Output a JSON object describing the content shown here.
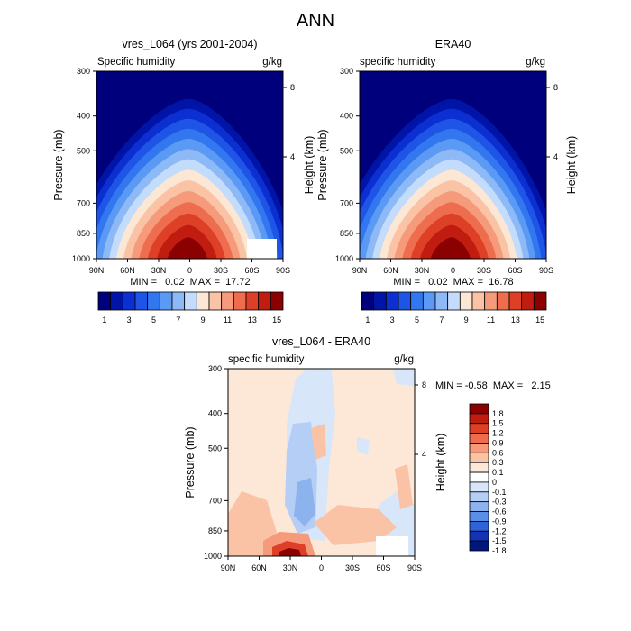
{
  "title": "ANN",
  "chart_data": [
    {
      "type": "heatmap",
      "title": "vres_L064 (yrs 2001-2004)",
      "subtitle_left": "Specific humidity",
      "units": "g/kg",
      "xlabel": "",
      "ylabel": "Pressure (mb)",
      "y2label": "Height (km)",
      "x_ticks": [
        "90N",
        "60N",
        "30N",
        "0",
        "30S",
        "60S",
        "90S"
      ],
      "y_ticks": [
        "300",
        "400",
        "500",
        "700",
        "850",
        "1000"
      ],
      "y2_ticks": [
        "8",
        "4"
      ],
      "min_max": "MIN =   0.02  MAX =  17.72",
      "value_range": [
        0.02,
        17.72
      ],
      "peak": {
        "lat": 0,
        "pressure": 1000,
        "value": 17.72
      },
      "colorbar": {
        "levels": [
          "1",
          "3",
          "5",
          "7",
          "9",
          "11",
          "13",
          "15"
        ]
      }
    },
    {
      "type": "heatmap",
      "title": "ERA40",
      "subtitle_left": "specific humidity",
      "units": "g/kg",
      "xlabel": "",
      "ylabel": "Pressure (mb)",
      "y2label": "Height (km)",
      "x_ticks": [
        "90N",
        "60N",
        "30N",
        "0",
        "30S",
        "60S",
        "90S"
      ],
      "y_ticks": [
        "300",
        "400",
        "500",
        "700",
        "850",
        "1000"
      ],
      "y2_ticks": [
        "8",
        "4"
      ],
      "min_max": "MIN =   0.02  MAX =  16.78",
      "value_range": [
        0.02,
        16.78
      ],
      "peak": {
        "lat": 0,
        "pressure": 1000,
        "value": 16.78
      },
      "colorbar": {
        "levels": [
          "1",
          "3",
          "5",
          "7",
          "9",
          "11",
          "13",
          "15"
        ]
      }
    },
    {
      "type": "heatmap",
      "title": "vres_L064 - ERA40",
      "subtitle_left": "specific humidity",
      "units": "g/kg",
      "xlabel": "",
      "ylabel": "Pressure (mb)",
      "y2label": "Height (km)",
      "x_ticks": [
        "90N",
        "60N",
        "30N",
        "0",
        "30S",
        "60S",
        "90S"
      ],
      "y_ticks": [
        "300",
        "400",
        "500",
        "700",
        "850",
        "1000"
      ],
      "y2_ticks": [
        "8",
        "4"
      ],
      "min_max": "MIN = -0.58  MAX =   2.15",
      "value_range": [
        -0.58,
        2.15
      ],
      "colorbar": {
        "levels": [
          "1.8",
          "1.5",
          "1.2",
          "0.9",
          "0.6",
          "0.3",
          "0.1",
          "0",
          "-0.1",
          "-0.3",
          "-0.6",
          "-0.9",
          "-1.2",
          "-1.5",
          "-1.8"
        ]
      }
    }
  ],
  "colors": {
    "seq": [
      "#00007c",
      "#0015a8",
      "#0c2fd2",
      "#1f55e6",
      "#3277f0",
      "#5a99f4",
      "#8dbaf6",
      "#c3dcfb",
      "#fce6d4",
      "#fac3a6",
      "#f59a7a",
      "#ee6d4f",
      "#dd4027",
      "#c01d10",
      "#8b0000"
    ],
    "diff": [
      "#8b0000",
      "#c01d10",
      "#dd4027",
      "#ee6d4f",
      "#f59a7a",
      "#fac3a6",
      "#fde8d8",
      "#ffffff",
      "#d8e6fa",
      "#b5cef5",
      "#8db3ef",
      "#5b8ee6",
      "#2f64d8",
      "#1034b4",
      "#00187e"
    ]
  }
}
